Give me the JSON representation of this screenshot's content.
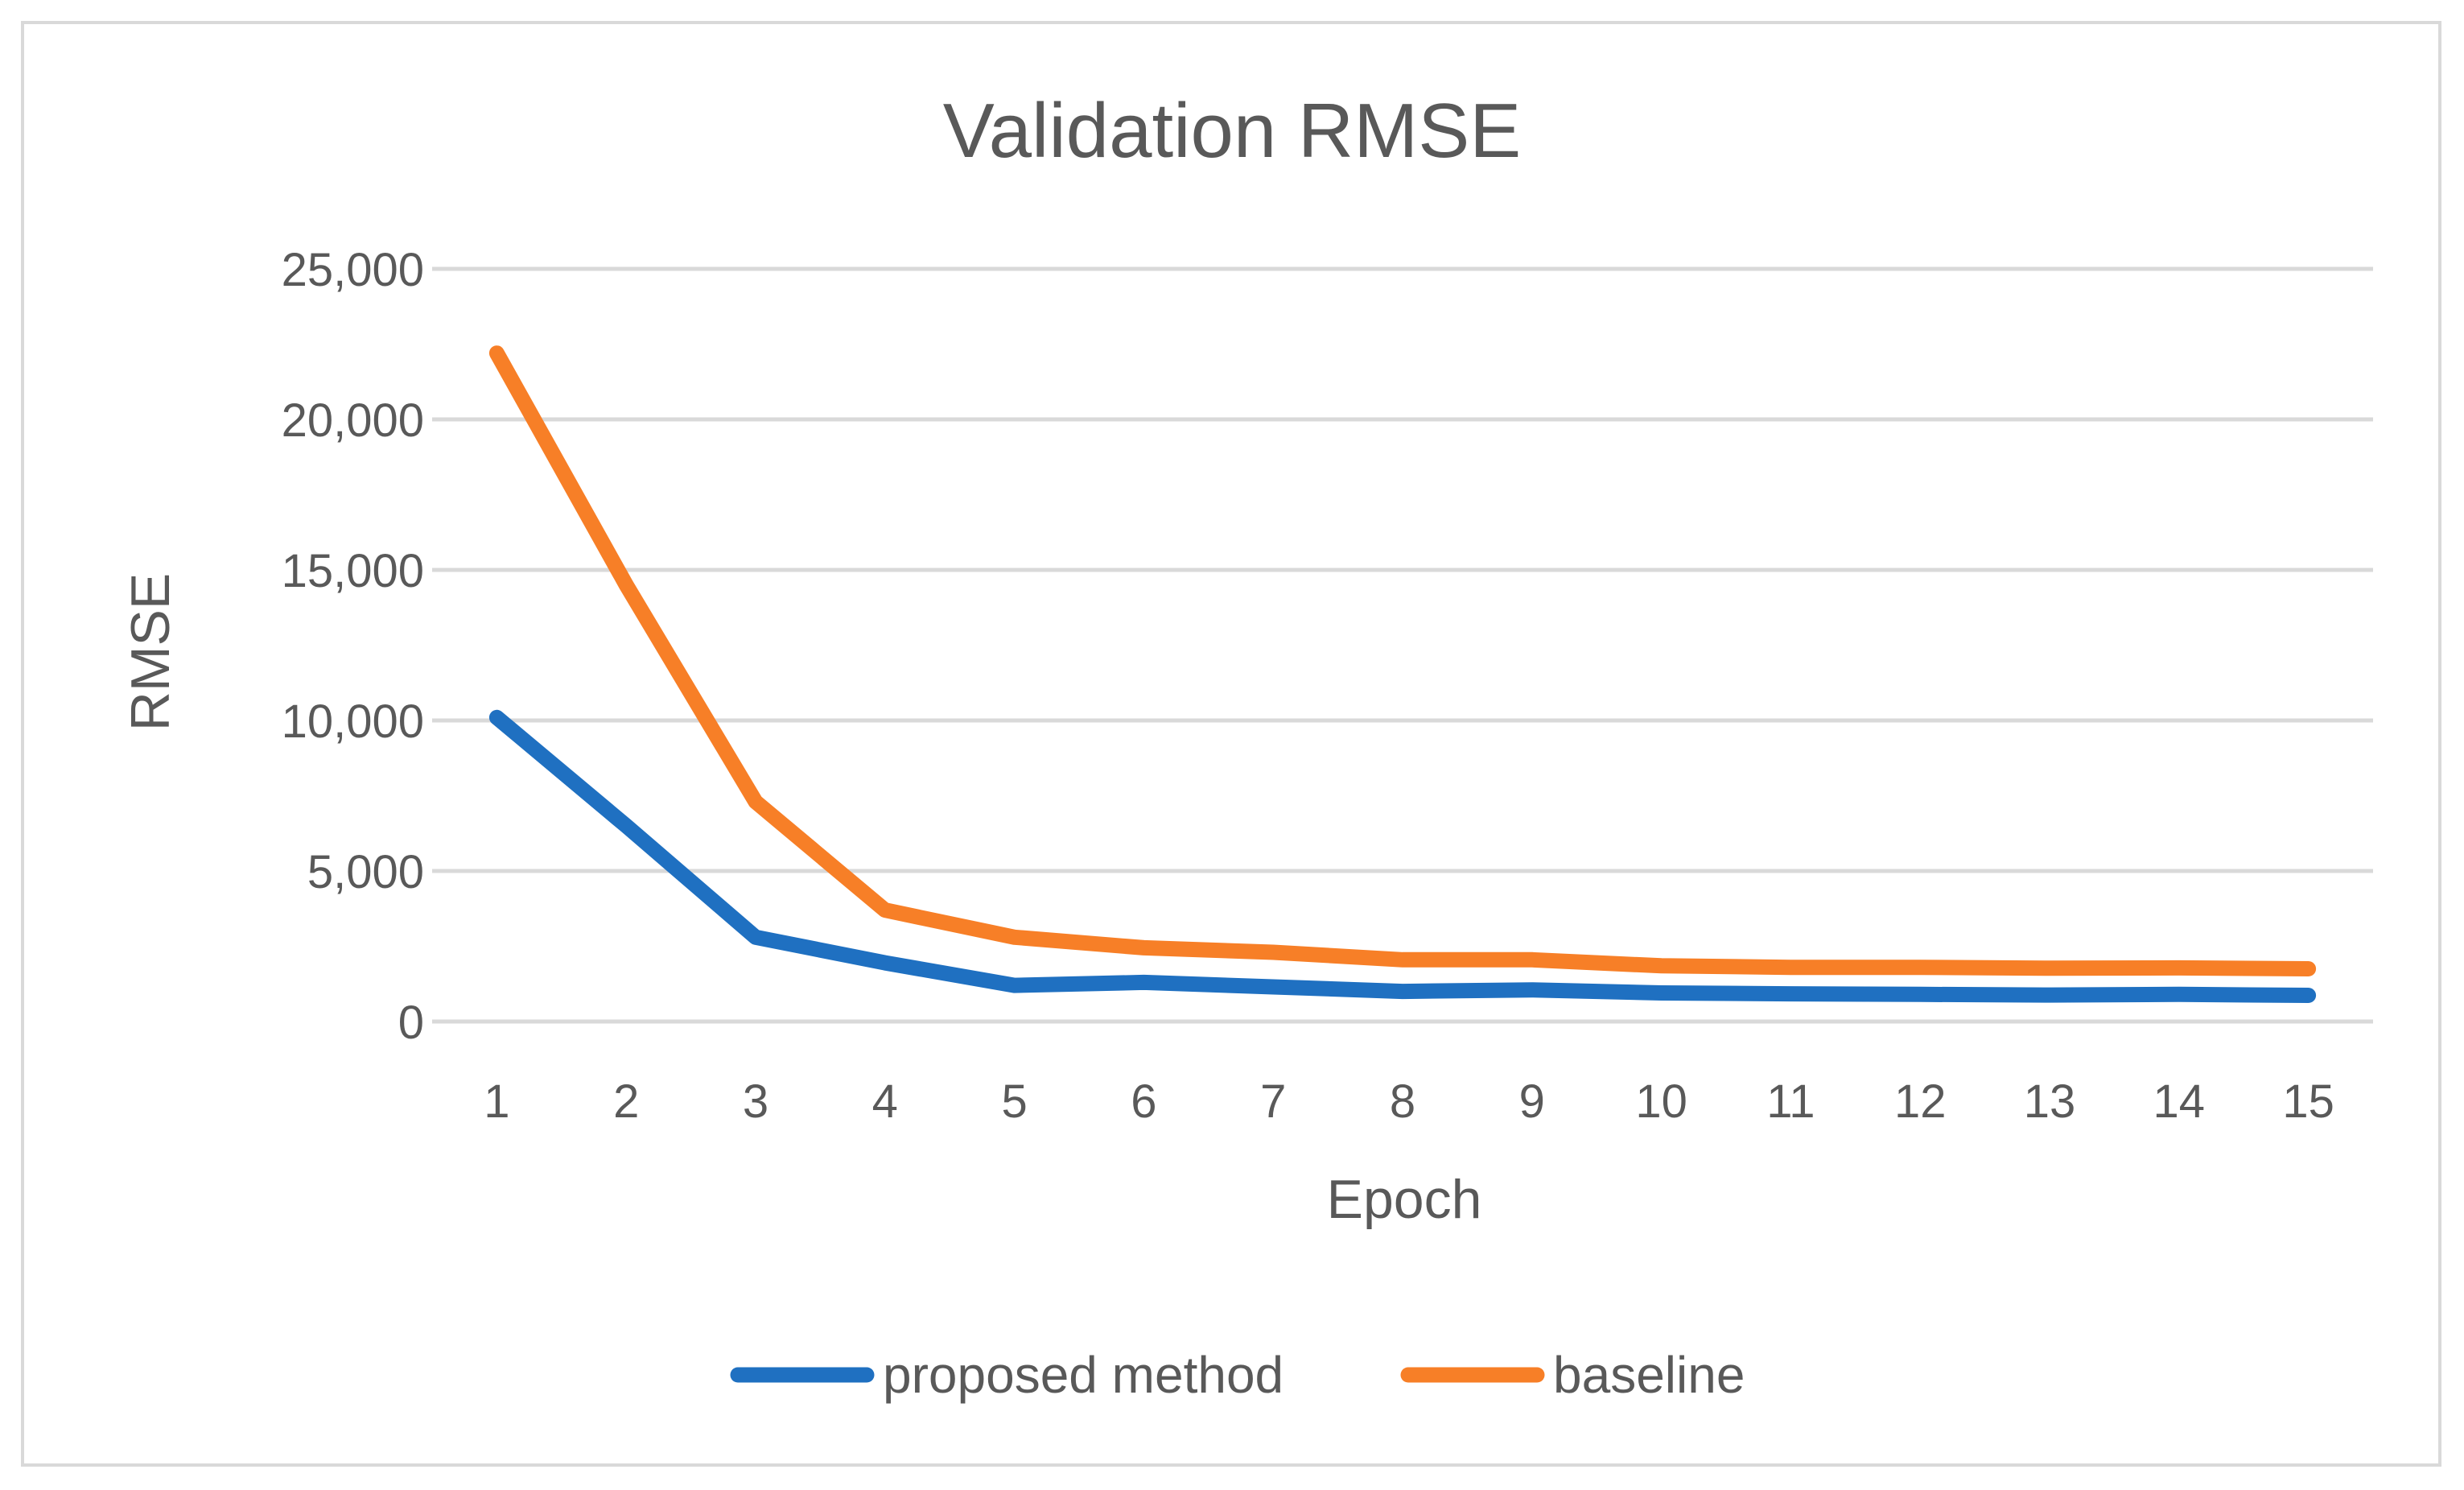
{
  "chart_data": {
    "type": "line",
    "title": "Validation RMSE",
    "xlabel": "Epoch",
    "ylabel": "RMSE",
    "categories": [
      "1",
      "2",
      "3",
      "4",
      "5",
      "6",
      "7",
      "8",
      "9",
      "10",
      "11",
      "12",
      "13",
      "14",
      "15"
    ],
    "ylim": [
      0,
      25000
    ],
    "yticks": [
      0,
      5000,
      10000,
      15000,
      20000,
      25000
    ],
    "ytick_labels": [
      "0",
      "5,000",
      "10,000",
      "15,000",
      "20,000",
      "25,000"
    ],
    "grid": true,
    "legend_position": "bottom",
    "series": [
      {
        "name": "proposed method",
        "color": "#1f70c1",
        "values": [
          10100,
          6500,
          2800,
          1950,
          1200,
          1300,
          1150,
          1000,
          1050,
          950,
          920,
          900,
          880,
          900,
          870
        ]
      },
      {
        "name": "baseline",
        "color": "#f77f27",
        "values": [
          22200,
          14500,
          7300,
          3700,
          2800,
          2450,
          2300,
          2050,
          2050,
          1850,
          1800,
          1800,
          1770,
          1780,
          1750
        ]
      }
    ]
  }
}
